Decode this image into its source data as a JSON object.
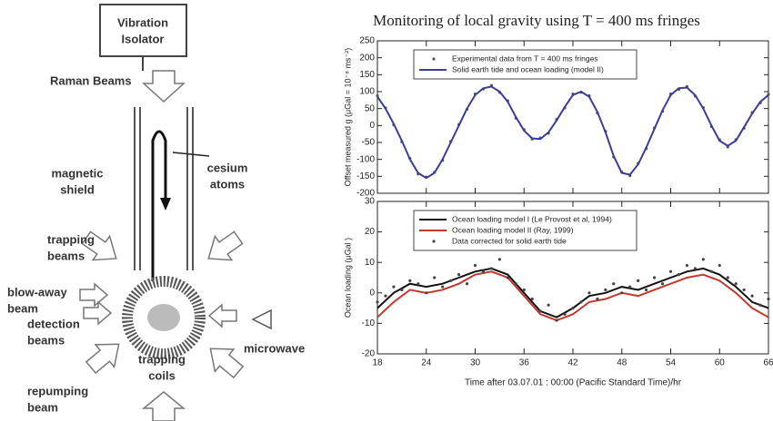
{
  "diagram": {
    "labels": [
      [
        "Vibration",
        "Isolator"
      ],
      [
        "Raman Beams"
      ],
      [
        "magnetic",
        "shield"
      ],
      [
        "cesium",
        "atoms"
      ],
      [
        "trapping",
        "beams"
      ],
      [
        "blow-away",
        "beam"
      ],
      [
        "detection",
        "beams"
      ],
      [
        "trapping",
        "coils"
      ],
      [
        "microwave"
      ],
      [
        "repumping",
        "beam"
      ]
    ]
  },
  "title": "Monitoring of local gravity using T = 400 ms fringes",
  "chart_data": [
    {
      "type": "line",
      "ylabel": "Offset measured g (μGal = 10⁻⁸ ms⁻²)",
      "xlim": [
        18,
        66
      ],
      "xticks": [
        18,
        24,
        30,
        36,
        42,
        48,
        54,
        60,
        66
      ],
      "ylim": [
        -200,
        250
      ],
      "yticks": [
        -200,
        -150,
        -100,
        -50,
        0,
        50,
        100,
        150,
        200,
        250
      ],
      "legend": "upper left",
      "x": [
        18,
        19,
        20,
        21,
        22,
        23,
        24,
        25,
        26,
        27,
        28,
        29,
        30,
        31,
        32,
        33,
        34,
        35,
        36,
        37,
        38,
        39,
        40,
        41,
        42,
        43,
        44,
        45,
        46,
        47,
        48,
        49,
        50,
        51,
        52,
        53,
        54,
        55,
        56,
        57,
        58,
        59,
        60,
        61,
        62,
        63,
        64,
        65,
        66
      ],
      "series": [
        {
          "name": "Experimental data from T = 400 ms fringes",
          "style": "points",
          "color": "#555555",
          "values": [
            88,
            52,
            2,
            -48,
            -97,
            -143,
            -152,
            -138,
            -103,
            -47,
            3,
            48,
            93,
            108,
            118,
            98,
            73,
            22,
            -12,
            -40,
            -37,
            -23,
            18,
            52,
            93,
            98,
            88,
            37,
            -17,
            -93,
            -137,
            -148,
            -112,
            -68,
            -7,
            42,
            93,
            107,
            115,
            87,
            53,
            -3,
            -42,
            -63,
            -42,
            -8,
            38,
            67,
            92
          ]
        },
        {
          "name": "Solid earth tide and ocean loading (model II)",
          "style": "line",
          "color": "#3a3d9a",
          "values": [
            85,
            50,
            5,
            -45,
            -100,
            -140,
            -155,
            -140,
            -100,
            -50,
            0,
            50,
            90,
            110,
            115,
            100,
            70,
            25,
            -15,
            -38,
            -40,
            -20,
            15,
            55,
            90,
            100,
            85,
            40,
            -20,
            -90,
            -140,
            -145,
            -115,
            -65,
            -10,
            45,
            90,
            110,
            112,
            90,
            50,
            0,
            -45,
            -60,
            -45,
            -5,
            35,
            70,
            90
          ]
        }
      ]
    },
    {
      "type": "line",
      "ylabel": "Ocean loading (μGal )",
      "xlabel": "Time after 03.07.01 : 00:00 (Pacific Standard Time)/hr",
      "xlim": [
        18,
        66
      ],
      "xticks": [
        18,
        24,
        30,
        36,
        42,
        48,
        54,
        60,
        66
      ],
      "ylim": [
        -20,
        30
      ],
      "yticks": [
        -20,
        -10,
        0,
        10,
        20,
        30
      ],
      "legend": "upper left",
      "series": [
        {
          "name": "Ocean loading model I (Le Provost et al, 1994)",
          "style": "line",
          "color": "#111111",
          "x": [
            18,
            20,
            22,
            24,
            26,
            28,
            30,
            32,
            34,
            36,
            38,
            40,
            42,
            44,
            46,
            48,
            50,
            52,
            54,
            56,
            58,
            60,
            62,
            64,
            66
          ],
          "values": [
            -5,
            0,
            3,
            2,
            3,
            5,
            7,
            8,
            6,
            0,
            -6,
            -8,
            -5,
            -1,
            0,
            2,
            1,
            3,
            5,
            7,
            8,
            6,
            2,
            -3,
            -5
          ]
        },
        {
          "name": "Ocean loading model II (Ray, 1999)",
          "style": "line",
          "color": "#c0392b",
          "x": [
            18,
            20,
            22,
            24,
            26,
            28,
            30,
            32,
            34,
            36,
            38,
            40,
            42,
            44,
            46,
            48,
            50,
            52,
            54,
            56,
            58,
            60,
            62,
            64,
            66
          ],
          "values": [
            -8,
            -3,
            1,
            0,
            1,
            3,
            6,
            7,
            5,
            -1,
            -7,
            -9,
            -7,
            -3,
            -2,
            0,
            -1,
            1,
            3,
            5,
            6,
            4,
            0,
            -5,
            -8
          ]
        },
        {
          "name": "Data corrected for solid earth tide",
          "style": "points",
          "color": "#444444",
          "x": [
            18,
            19,
            20,
            21,
            22,
            23,
            24,
            25,
            26,
            27,
            28,
            29,
            30,
            31,
            32,
            33,
            34,
            35,
            36,
            37,
            38,
            39,
            40,
            41,
            42,
            43,
            44,
            45,
            46,
            47,
            48,
            49,
            50,
            51,
            52,
            53,
            54,
            55,
            56,
            57,
            58,
            59,
            60,
            61,
            62,
            63,
            64,
            65,
            66
          ],
          "values": [
            -3,
            -1,
            2,
            1,
            4,
            3,
            0,
            5,
            2,
            4,
            6,
            3,
            9,
            7,
            8,
            11,
            5,
            3,
            1,
            -2,
            -6,
            -4,
            -9,
            -7,
            -5,
            -3,
            0,
            -2,
            1,
            3,
            0,
            2,
            4,
            1,
            5,
            3,
            7,
            6,
            9,
            8,
            11,
            7,
            9,
            5,
            3,
            1,
            -1,
            -4,
            -2
          ]
        }
      ]
    }
  ]
}
